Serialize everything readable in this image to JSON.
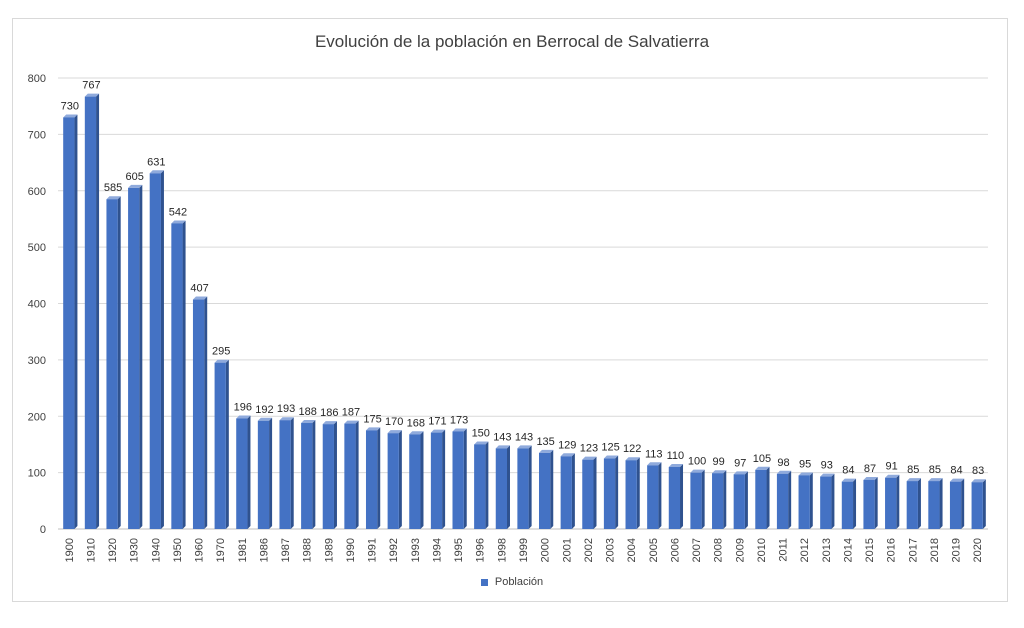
{
  "chart_data": {
    "type": "bar",
    "title": "Evolución de la población en Berrocal de Salvatierra",
    "xlabel": "",
    "ylabel": "",
    "ylim": [
      0,
      800
    ],
    "yticks": [
      0,
      100,
      200,
      300,
      400,
      500,
      600,
      700,
      800
    ],
    "grid": true,
    "legend_position": "bottom",
    "categories": [
      "1900",
      "1910",
      "1920",
      "1930",
      "1940",
      "1950",
      "1960",
      "1970",
      "1981",
      "1986",
      "1987",
      "1988",
      "1989",
      "1990",
      "1991",
      "1992",
      "1993",
      "1994",
      "1995",
      "1996",
      "1998",
      "1999",
      "2000",
      "2001",
      "2002",
      "2003",
      "2004",
      "2005",
      "2006",
      "2007",
      "2008",
      "2009",
      "2010",
      "2011",
      "2012",
      "2013",
      "2014",
      "2015",
      "2016",
      "2017",
      "2018",
      "2019",
      "2020"
    ],
    "series": [
      {
        "name": "Población",
        "color": "#4472C4",
        "values": [
          730,
          767,
          585,
          605,
          631,
          542,
          407,
          295,
          196,
          192,
          193,
          188,
          186,
          187,
          175,
          170,
          168,
          171,
          173,
          150,
          143,
          143,
          135,
          129,
          123,
          125,
          122,
          113,
          110,
          100,
          99,
          97,
          105,
          98,
          95,
          93,
          84,
          87,
          91,
          85,
          85,
          84,
          83
        ]
      }
    ]
  }
}
